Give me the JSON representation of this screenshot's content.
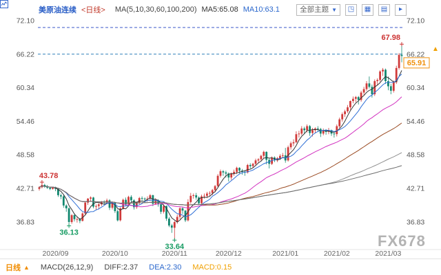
{
  "header": {
    "symbol": "美原油连续",
    "period_tag": "<日线>",
    "ma_params": "MA(5,10,30,60,100,200)",
    "ma5_label": "MA5:65.08",
    "ma10_label": "MA10:63.1",
    "theme_dropdown": "全部主题",
    "dropdown_arrow": "▼",
    "tools": [
      {
        "glyph": "◳"
      },
      {
        "glyph": "▦"
      },
      {
        "glyph": "▤"
      },
      {
        "glyph": "▸"
      }
    ]
  },
  "footer": {
    "period_label": "日线",
    "period_arrow": "▲",
    "macd_params": "MACD(26,12,9)",
    "diff_label": "DIFF:2.37",
    "dea_label": "DEA:2.30",
    "macd_label": "MACD:0.15"
  },
  "watermark": "FX678",
  "right_axis_marker": "▲",
  "colors": {
    "accent_blue": "#2b5fc7",
    "up_red": "#d03a3a",
    "down_green": "#12876f",
    "orange": "#f0900a",
    "axis_text": "#555555"
  },
  "chart_data": {
    "type": "candlestick",
    "title": "美原油连续 <日线>",
    "y_ticks": [
      "72.10",
      "66.22",
      "60.34",
      "54.46",
      "48.58",
      "42.71",
      "36.83"
    ],
    "x_labels": [
      {
        "text": "2020/09",
        "i": 6
      },
      {
        "text": "2020/10",
        "i": 28
      },
      {
        "text": "2020/11",
        "i": 50
      },
      {
        "text": "2020/12",
        "i": 70
      },
      {
        "text": "2021/01",
        "i": 91
      },
      {
        "text": "2021/02",
        "i": 110
      },
      {
        "text": "2021/03",
        "i": 129
      }
    ],
    "ma_periods": [
      5,
      10,
      30,
      60,
      100,
      200
    ],
    "ma_colors": [
      "#333333",
      "#2f6fd6",
      "#d233c0",
      "#9a4a22",
      "#909090",
      "#6b6b6b"
    ],
    "up_color": "#d03a3a",
    "down_color": "#12876f",
    "dashed_lines": [
      {
        "price": 70.9,
        "color": "#3a57c9"
      },
      {
        "price": 66.22,
        "color": "#2d7fb8"
      }
    ],
    "annotations": [
      {
        "text": "43.78",
        "i": 1,
        "price": 43.78,
        "pos": "above",
        "align": "start",
        "color": "#cc3232"
      },
      {
        "text": "36.13",
        "i": 11,
        "price": 36.13,
        "pos": "below",
        "align": "middle",
        "color": "#169b62"
      },
      {
        "text": "33.64",
        "i": 50,
        "price": 33.64,
        "pos": "below",
        "align": "middle",
        "color": "#169b62"
      },
      {
        "text": "67.98",
        "i": 134,
        "price": 67.98,
        "pos": "above",
        "align": "end",
        "color": "#cc3232"
      }
    ],
    "last_price_tag": {
      "text": "65.91",
      "price": 65.91,
      "color": "#f0900a"
    },
    "candles": [
      [
        42.6,
        43.1,
        42.3,
        42.9
      ],
      [
        42.9,
        43.78,
        42.7,
        43.3
      ],
      [
        43.3,
        43.5,
        42.8,
        43.0
      ],
      [
        43.0,
        43.3,
        42.6,
        42.8
      ],
      [
        42.8,
        43.0,
        42.4,
        42.6
      ],
      [
        42.6,
        43.0,
        42.5,
        42.9
      ],
      [
        42.9,
        43.0,
        42.2,
        42.6
      ],
      [
        42.6,
        42.8,
        41.2,
        41.5
      ],
      [
        41.5,
        41.8,
        40.8,
        41.3
      ],
      [
        41.3,
        41.5,
        39.3,
        39.7
      ],
      [
        39.7,
        39.9,
        38.6,
        39.2
      ],
      [
        39.2,
        39.4,
        36.13,
        36.8
      ],
      [
        36.8,
        38.2,
        36.5,
        38.0
      ],
      [
        38.0,
        38.3,
        36.9,
        37.3
      ],
      [
        37.3,
        37.6,
        36.7,
        37.3
      ],
      [
        37.3,
        37.5,
        36.6,
        37.0
      ],
      [
        37.0,
        38.5,
        36.9,
        38.3
      ],
      [
        38.3,
        40.3,
        38.1,
        40.2
      ],
      [
        40.2,
        41.0,
        39.8,
        40.9
      ],
      [
        40.9,
        41.3,
        40.4,
        41.1
      ],
      [
        41.1,
        41.2,
        39.2,
        39.5
      ],
      [
        39.5,
        39.9,
        38.9,
        39.6
      ],
      [
        39.6,
        40.1,
        39.0,
        39.9
      ],
      [
        39.9,
        40.5,
        39.6,
        40.3
      ],
      [
        40.3,
        40.6,
        39.9,
        40.2
      ],
      [
        40.2,
        40.9,
        39.9,
        40.6
      ],
      [
        40.6,
        40.8,
        38.9,
        39.3
      ],
      [
        39.3,
        40.4,
        39.0,
        40.2
      ],
      [
        40.2,
        40.3,
        38.4,
        38.7
      ],
      [
        38.7,
        39.0,
        36.9,
        37.1
      ],
      [
        37.1,
        39.4,
        36.9,
        39.2
      ],
      [
        39.2,
        40.9,
        39.0,
        40.7
      ],
      [
        40.7,
        41.1,
        39.6,
        39.9
      ],
      [
        39.9,
        41.4,
        39.8,
        41.2
      ],
      [
        41.2,
        41.5,
        40.3,
        40.6
      ],
      [
        40.6,
        40.8,
        39.0,
        39.4
      ],
      [
        39.4,
        40.4,
        39.1,
        40.2
      ],
      [
        40.2,
        41.2,
        39.9,
        41.0
      ],
      [
        41.0,
        41.3,
        40.5,
        40.9
      ],
      [
        40.9,
        41.1,
        40.3,
        40.8
      ],
      [
        40.8,
        41.3,
        40.4,
        40.9
      ],
      [
        40.9,
        41.7,
        40.5,
        41.5
      ],
      [
        41.5,
        41.6,
        39.6,
        40.0
      ],
      [
        40.0,
        41.0,
        39.8,
        40.6
      ],
      [
        40.6,
        40.8,
        39.5,
        39.9
      ],
      [
        39.9,
        40.0,
        38.2,
        38.6
      ],
      [
        38.6,
        39.9,
        38.3,
        39.6
      ],
      [
        39.6,
        39.7,
        37.0,
        37.4
      ],
      [
        37.4,
        37.7,
        35.9,
        36.2
      ],
      [
        36.2,
        36.5,
        34.9,
        35.8
      ],
      [
        35.8,
        37.0,
        33.64,
        36.8
      ],
      [
        36.8,
        38.1,
        36.5,
        37.7
      ],
      [
        37.7,
        39.4,
        37.3,
        39.2
      ],
      [
        39.2,
        39.5,
        38.2,
        38.8
      ],
      [
        38.8,
        38.9,
        36.8,
        37.1
      ],
      [
        37.1,
        40.8,
        36.9,
        40.3
      ],
      [
        40.3,
        41.9,
        40.0,
        41.4
      ],
      [
        41.4,
        41.8,
        40.9,
        41.5
      ],
      [
        41.5,
        41.9,
        40.7,
        41.1
      ],
      [
        41.1,
        41.3,
        39.8,
        40.1
      ],
      [
        40.1,
        41.6,
        39.9,
        41.3
      ],
      [
        41.3,
        41.8,
        40.9,
        41.4
      ],
      [
        41.4,
        42.1,
        41.0,
        41.8
      ],
      [
        41.8,
        42.2,
        41.3,
        41.9
      ],
      [
        41.9,
        42.6,
        41.5,
        42.4
      ],
      [
        42.4,
        43.3,
        42.0,
        43.1
      ],
      [
        43.1,
        45.2,
        42.9,
        44.9
      ],
      [
        44.9,
        46.0,
        44.6,
        45.7
      ],
      [
        45.7,
        45.9,
        44.9,
        45.5
      ],
      [
        45.5,
        45.8,
        44.6,
        45.3
      ],
      [
        45.3,
        45.5,
        43.9,
        44.6
      ],
      [
        44.6,
        45.5,
        44.2,
        45.3
      ],
      [
        45.3,
        46.0,
        44.9,
        45.6
      ],
      [
        45.6,
        46.5,
        45.2,
        46.3
      ],
      [
        46.3,
        46.4,
        45.3,
        45.8
      ],
      [
        45.8,
        46.1,
        45.1,
        45.6
      ],
      [
        45.6,
        45.9,
        44.9,
        45.5
      ],
      [
        45.5,
        47.0,
        45.3,
        46.8
      ],
      [
        46.8,
        47.1,
        46.2,
        46.6
      ],
      [
        46.6,
        47.2,
        46.3,
        47.0
      ],
      [
        47.0,
        47.9,
        46.7,
        47.6
      ],
      [
        47.6,
        48.0,
        47.2,
        47.8
      ],
      [
        47.8,
        48.6,
        47.4,
        48.4
      ],
      [
        48.4,
        49.3,
        48.0,
        49.1
      ],
      [
        49.1,
        49.2,
        46.9,
        47.7
      ],
      [
        47.7,
        48.0,
        46.2,
        47.0
      ],
      [
        47.0,
        48.3,
        46.8,
        48.1
      ],
      [
        48.1,
        48.3,
        47.3,
        47.6
      ],
      [
        47.6,
        48.2,
        47.3,
        48.0
      ],
      [
        48.0,
        48.7,
        47.7,
        48.4
      ],
      [
        48.4,
        48.9,
        48.0,
        48.5
      ],
      [
        48.5,
        49.8,
        47.2,
        47.6
      ],
      [
        47.6,
        50.2,
        47.4,
        49.9
      ],
      [
        49.9,
        50.9,
        49.5,
        50.6
      ],
      [
        50.6,
        51.3,
        50.1,
        50.8
      ],
      [
        50.8,
        52.7,
        50.6,
        52.2
      ],
      [
        52.2,
        52.8,
        51.6,
        52.3
      ],
      [
        52.3,
        53.6,
        52.0,
        53.2
      ],
      [
        53.2,
        53.5,
        52.3,
        52.9
      ],
      [
        52.9,
        53.9,
        52.5,
        53.6
      ],
      [
        53.6,
        53.8,
        51.9,
        52.4
      ],
      [
        52.4,
        53.3,
        51.8,
        52.9
      ],
      [
        52.9,
        53.4,
        52.4,
        53.2
      ],
      [
        53.2,
        53.6,
        52.6,
        53.1
      ],
      [
        53.1,
        53.3,
        51.7,
        52.3
      ],
      [
        52.3,
        53.2,
        52.0,
        52.8
      ],
      [
        52.8,
        53.1,
        52.1,
        52.6
      ],
      [
        52.6,
        53.3,
        52.2,
        52.9
      ],
      [
        52.9,
        53.0,
        51.9,
        52.3
      ],
      [
        52.3,
        52.7,
        51.6,
        52.2
      ],
      [
        52.2,
        53.9,
        51.8,
        53.6
      ],
      [
        53.6,
        55.1,
        53.3,
        54.8
      ],
      [
        54.8,
        56.0,
        54.4,
        55.7
      ],
      [
        55.7,
        56.5,
        55.2,
        56.2
      ],
      [
        56.2,
        57.3,
        55.9,
        56.9
      ],
      [
        56.9,
        58.1,
        56.5,
        58.0
      ],
      [
        58.0,
        58.8,
        57.6,
        58.4
      ],
      [
        58.4,
        58.9,
        57.8,
        58.7
      ],
      [
        58.7,
        58.9,
        57.4,
        58.2
      ],
      [
        58.2,
        59.8,
        57.9,
        59.5
      ],
      [
        59.5,
        60.5,
        59.1,
        60.1
      ],
      [
        60.1,
        61.5,
        59.8,
        61.1
      ],
      [
        61.1,
        62.3,
        60.2,
        60.5
      ],
      [
        60.5,
        60.9,
        58.6,
        59.2
      ],
      [
        59.2,
        61.8,
        58.9,
        61.5
      ],
      [
        61.5,
        62.0,
        60.8,
        61.7
      ],
      [
        61.7,
        63.4,
        61.4,
        63.2
      ],
      [
        63.2,
        63.8,
        62.4,
        63.5
      ],
      [
        63.5,
        63.7,
        61.0,
        61.5
      ],
      [
        61.5,
        62.3,
        59.9,
        60.6
      ],
      [
        60.6,
        61.0,
        59.2,
        59.8
      ],
      [
        59.8,
        61.6,
        59.5,
        61.3
      ],
      [
        61.3,
        64.2,
        61.0,
        63.8
      ],
      [
        63.8,
        66.4,
        63.5,
        66.1
      ],
      [
        66.1,
        67.98,
        64.8,
        65.91
      ]
    ]
  }
}
